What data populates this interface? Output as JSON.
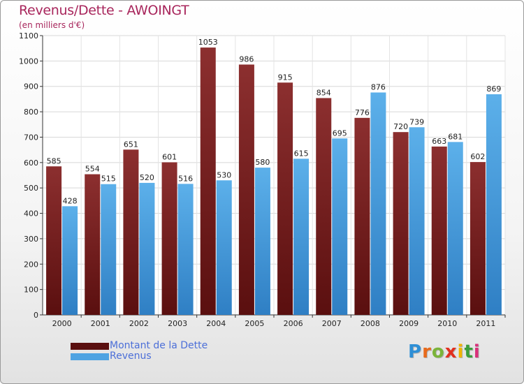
{
  "title": "Revenus/Dette - AWOINGT",
  "subtitle": "(en milliers d'€)",
  "colors": {
    "dette": "#7a1f1f",
    "revenus": "#4ea3e2",
    "title": "#a8265c"
  },
  "brand": {
    "letters": [
      "P",
      "r",
      "o",
      "x",
      "i",
      "t",
      "i"
    ],
    "colors": [
      "#2e8fd6",
      "#e86a1c",
      "#7bb43a",
      "#e2301f",
      "#f0b400",
      "#3b9d3b",
      "#d9307a"
    ]
  },
  "chart_data": {
    "type": "bar",
    "categories": [
      "2000",
      "2001",
      "2002",
      "2003",
      "2004",
      "2005",
      "2006",
      "2007",
      "2008",
      "2009",
      "2010",
      "2011"
    ],
    "series": [
      {
        "name": "Montant de la Dette",
        "values": [
          585,
          554,
          651,
          601,
          1053,
          986,
          915,
          854,
          776,
          720,
          663,
          602
        ]
      },
      {
        "name": "Revenus",
        "values": [
          428,
          515,
          520,
          516,
          530,
          580,
          615,
          695,
          876,
          739,
          681,
          869
        ]
      }
    ],
    "ylim": [
      0,
      1100
    ],
    "yticks": [
      0,
      100,
      200,
      300,
      400,
      500,
      600,
      700,
      800,
      900,
      1000,
      1100
    ],
    "grid": true,
    "legend": "bottom-left"
  }
}
